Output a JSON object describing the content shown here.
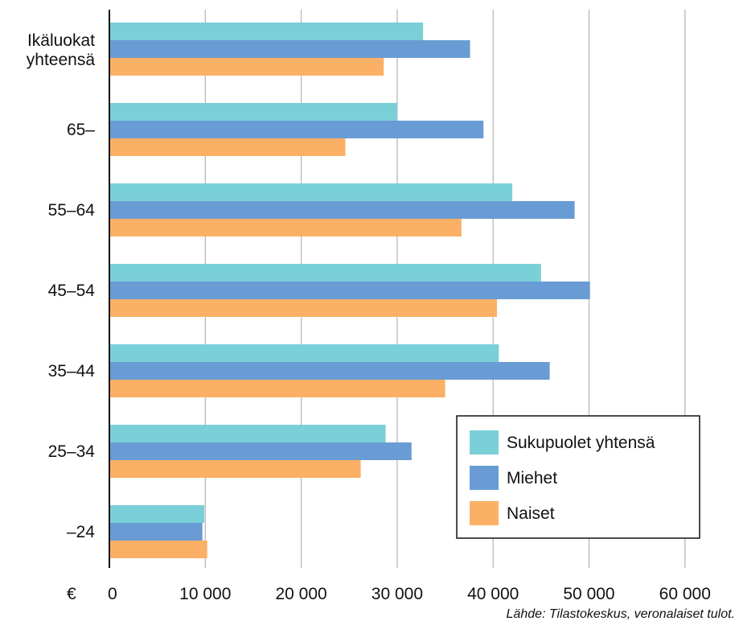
{
  "chart_data": {
    "type": "bar",
    "orientation": "horizontal",
    "categories": [
      "Ikäluokat yhteensä",
      "65–",
      "55–64",
      "45–54",
      "35–44",
      "25–34",
      "–24"
    ],
    "series": [
      {
        "name": "Sukupuolet yhtensä",
        "color": "#7ad0d9",
        "values": [
          32700,
          30000,
          42000,
          45000,
          40600,
          28800,
          9900
        ]
      },
      {
        "name": "Miehet",
        "color": "#699cd4",
        "values": [
          37600,
          39000,
          48500,
          50100,
          45900,
          31500,
          9700
        ]
      },
      {
        "name": "Naiset",
        "color": "#fbb065",
        "values": [
          28600,
          24600,
          36700,
          40400,
          35000,
          26200,
          10200
        ]
      }
    ],
    "xlim": [
      0,
      60000
    ],
    "x_ticks": [
      {
        "value": 0,
        "label": "0"
      },
      {
        "value": 10000,
        "label": "10 000"
      },
      {
        "value": 20000,
        "label": "20 000"
      },
      {
        "value": 30000,
        "label": "30 000"
      },
      {
        "value": 40000,
        "label": "40 000"
      },
      {
        "value": 50000,
        "label": "50 000"
      },
      {
        "value": 60000,
        "label": "60 000"
      }
    ],
    "x_unit": "€",
    "grid": "vertical",
    "legend_position": "bottom-right",
    "source": "Lähde: Tilastokeskus, veronalaiset tulot."
  }
}
